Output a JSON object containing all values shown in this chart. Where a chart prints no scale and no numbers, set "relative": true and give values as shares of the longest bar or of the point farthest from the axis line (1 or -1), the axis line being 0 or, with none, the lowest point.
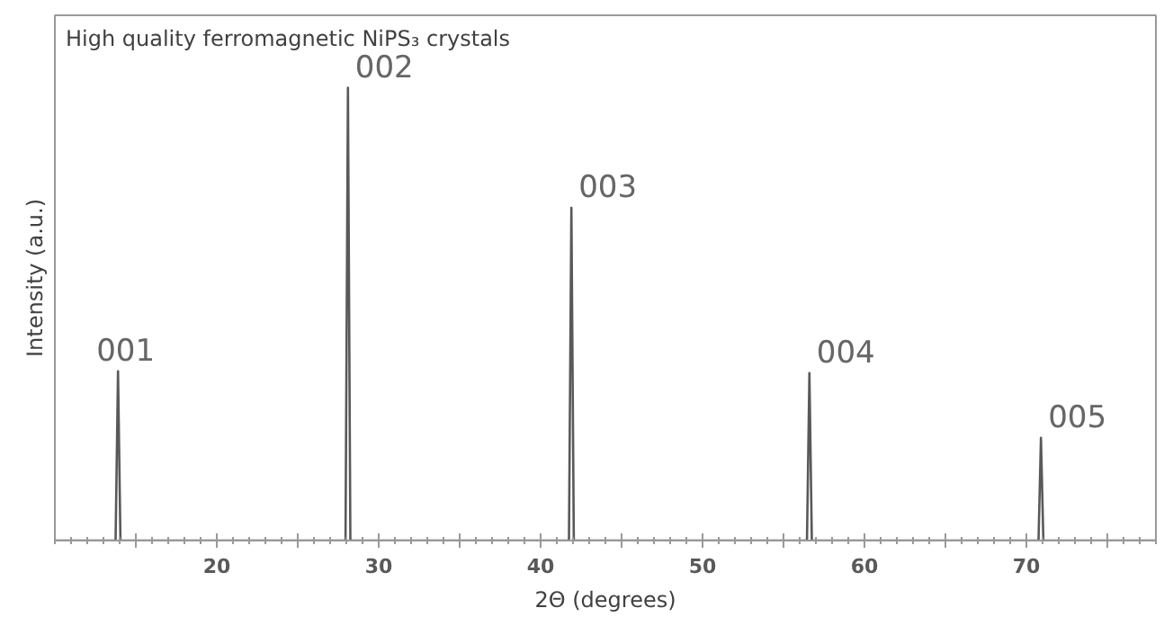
{
  "chart_data": {
    "type": "line",
    "title": "High quality ferromagnetic NiPS₃ crystals",
    "xlabel": "2Θ (degrees)",
    "ylabel": "Intensity (a.u.)",
    "relative": true,
    "x": [
      10,
      13.75,
      13.9,
      14.05,
      27.95,
      28.1,
      28.25,
      41.75,
      41.9,
      42.05,
      56.45,
      56.6,
      56.75,
      70.75,
      70.9,
      71.05,
      78
    ],
    "series": [
      {
        "color": "#595959",
        "values": [
          0,
          0,
          0.374,
          0,
          0,
          1,
          0,
          0,
          0.735,
          0,
          0,
          0.37,
          0,
          0,
          0.227,
          0,
          0
        ]
      }
    ],
    "xlim": [
      10,
      78
    ],
    "xticks": [
      {
        "value": 15,
        "label": null
      },
      20,
      {
        "value": 25,
        "label": null
      },
      30,
      {
        "value": 35,
        "label": null
      },
      40,
      {
        "value": 45,
        "label": null
      },
      50,
      {
        "value": 55,
        "label": null
      },
      60,
      {
        "value": 65,
        "label": null
      },
      70,
      {
        "value": 75,
        "label": null
      }
    ],
    "grid": false,
    "marker": "none",
    "line_style": "solid",
    "annotations": [
      {
        "text": "001",
        "x": 13.9,
        "y": 0.374
      },
      {
        "text": "002",
        "x": 28.1,
        "y": 1
      },
      {
        "text": "003",
        "x": 41.9,
        "y": 0.735
      },
      {
        "text": "004",
        "x": 56.6,
        "y": 0.37
      },
      {
        "text": "005",
        "x": 70.9,
        "y": 0.227
      }
    ]
  }
}
